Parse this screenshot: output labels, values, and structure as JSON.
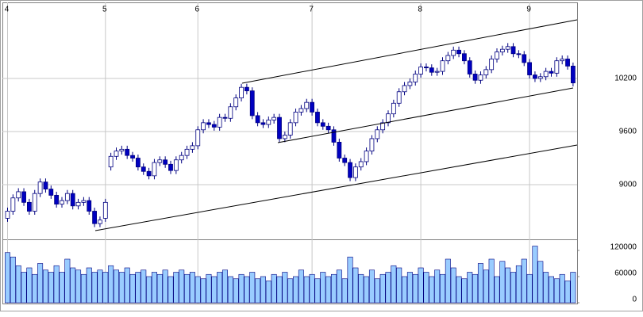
{
  "chart_data": [
    {
      "type": "candlestick",
      "categories": [
        "4",
        null,
        null,
        null,
        null,
        null,
        null,
        null,
        null,
        null,
        null,
        null,
        null,
        null,
        null,
        null,
        null,
        null,
        "5",
        null,
        null,
        null,
        null,
        null,
        null,
        null,
        null,
        null,
        null,
        null,
        null,
        null,
        null,
        null,
        null,
        "6",
        null,
        null,
        null,
        null,
        null,
        null,
        null,
        null,
        null,
        null,
        null,
        null,
        null,
        null,
        null,
        null,
        null,
        null,
        null,
        null,
        "7",
        null,
        null,
        null,
        null,
        null,
        null,
        null,
        null,
        null,
        null,
        null,
        null,
        null,
        null,
        null,
        null,
        null,
        null,
        null,
        "8",
        null,
        null,
        null,
        null,
        null,
        null,
        null,
        null,
        null,
        null,
        null,
        null,
        null,
        null,
        null,
        null,
        null,
        null,
        null,
        "9",
        null,
        null,
        null,
        null,
        null,
        null,
        null,
        null
      ],
      "open": [
        8620,
        8700,
        8850,
        8920,
        8800,
        8700,
        8900,
        9030,
        8950,
        8880,
        8780,
        8820,
        8900,
        8760,
        8800,
        8820,
        8700,
        8560,
        8620,
        9200,
        9320,
        9380,
        9400,
        9330,
        9300,
        9200,
        9150,
        9100,
        9250,
        9280,
        9230,
        9160,
        9280,
        9330,
        9400,
        9440,
        9620,
        9700,
        9680,
        9650,
        9760,
        9750,
        9880,
        9980,
        10100,
        10060,
        9780,
        9700,
        9680,
        9730,
        9760,
        9520,
        9560,
        9700,
        9820,
        9860,
        9930,
        9820,
        9700,
        9660,
        9620,
        9480,
        9300,
        9250,
        9080,
        9200,
        9260,
        9380,
        9520,
        9620,
        9700,
        9800,
        9920,
        10050,
        10120,
        10160,
        10250,
        10330,
        10320,
        10270,
        10280,
        10400,
        10460,
        10520,
        10480,
        10400,
        10250,
        10180,
        10240,
        10300,
        10420,
        10500,
        10530,
        10560,
        10480,
        10470,
        10380,
        10240,
        10200,
        10220,
        10280,
        10260,
        10400,
        10420,
        10340
      ],
      "high": [
        8740,
        8890,
        8960,
        8960,
        8840,
        8940,
        9070,
        9070,
        8990,
        8920,
        8860,
        8940,
        8940,
        8840,
        8860,
        8860,
        8740,
        8640,
        8840,
        9360,
        9420,
        9440,
        9440,
        9370,
        9340,
        9240,
        9190,
        9290,
        9320,
        9320,
        9270,
        9320,
        9370,
        9440,
        9480,
        9660,
        9740,
        9740,
        9720,
        9800,
        9800,
        9920,
        10020,
        10140,
        10140,
        10100,
        9820,
        9740,
        9770,
        9800,
        9800,
        9600,
        9740,
        9860,
        9900,
        9970,
        9970,
        9860,
        9740,
        9700,
        9660,
        9520,
        9340,
        9290,
        9240,
        9300,
        9420,
        9560,
        9660,
        9740,
        9840,
        9960,
        10090,
        10160,
        10200,
        10290,
        10370,
        10370,
        10360,
        10320,
        10440,
        10500,
        10560,
        10560,
        10520,
        10440,
        10290,
        10280,
        10340,
        10460,
        10540,
        10570,
        10600,
        10600,
        10520,
        10510,
        10420,
        10280,
        10260,
        10320,
        10320,
        10440,
        10460,
        10460,
        10380
      ],
      "low": [
        8580,
        8660,
        8810,
        8760,
        8660,
        8660,
        8860,
        8910,
        8840,
        8740,
        8740,
        8780,
        8720,
        8720,
        8760,
        8660,
        8520,
        8520,
        8580,
        9160,
        9280,
        9340,
        9290,
        9260,
        9160,
        9110,
        9060,
        9060,
        9210,
        9190,
        9120,
        9120,
        9240,
        9290,
        9360,
        9400,
        9580,
        9640,
        9610,
        9610,
        9710,
        9710,
        9840,
        9940,
        10020,
        9740,
        9660,
        9640,
        9640,
        9690,
        9480,
        9480,
        9520,
        9660,
        9780,
        9820,
        9780,
        9660,
        9620,
        9580,
        9440,
        9260,
        9210,
        9040,
        9040,
        9160,
        9220,
        9340,
        9480,
        9580,
        9660,
        9760,
        9880,
        10010,
        10080,
        10120,
        10210,
        10280,
        10230,
        10230,
        10240,
        10360,
        10420,
        10440,
        10360,
        10210,
        10140,
        10140,
        10200,
        10260,
        10380,
        10460,
        10490,
        10440,
        10430,
        10340,
        10200,
        10160,
        10160,
        10180,
        10220,
        10220,
        10360,
        10300,
        10110
      ],
      "close": [
        8700,
        8850,
        8920,
        8800,
        8700,
        8900,
        9030,
        8950,
        8880,
        8780,
        8820,
        8900,
        8760,
        8800,
        8820,
        8700,
        8560,
        8600,
        8800,
        9320,
        9380,
        9400,
        9330,
        9300,
        9200,
        9150,
        9100,
        9250,
        9280,
        9230,
        9160,
        9280,
        9330,
        9400,
        9440,
        9620,
        9700,
        9680,
        9650,
        9760,
        9750,
        9880,
        9980,
        10100,
        10060,
        9780,
        9700,
        9680,
        9730,
        9760,
        9520,
        9560,
        9700,
        9820,
        9860,
        9930,
        9820,
        9700,
        9660,
        9620,
        9480,
        9300,
        9250,
        9080,
        9200,
        9260,
        9380,
        9520,
        9620,
        9700,
        9800,
        9920,
        10050,
        10120,
        10160,
        10250,
        10330,
        10320,
        10270,
        10280,
        10400,
        10460,
        10520,
        10480,
        10400,
        10250,
        10180,
        10240,
        10300,
        10420,
        10500,
        10530,
        10560,
        10480,
        10470,
        10380,
        10240,
        10200,
        10220,
        10280,
        10260,
        10400,
        10420,
        10340,
        10150
      ],
      "up_color": "#ffffff",
      "down_color": "#0000c0",
      "edge_color": "#000080",
      "ylim": [
        8400,
        11060
      ],
      "yticks": [
        9000,
        9600,
        10200
      ],
      "grid": true
    },
    {
      "type": "bar",
      "values": [
        115000,
        105000,
        85000,
        70000,
        80000,
        65000,
        90000,
        75000,
        70000,
        85000,
        70000,
        100000,
        80000,
        75000,
        65000,
        80000,
        70000,
        75000,
        70000,
        85000,
        75000,
        70000,
        80000,
        65000,
        70000,
        75000,
        60000,
        70000,
        65000,
        75000,
        60000,
        70000,
        75000,
        65000,
        70000,
        60000,
        55000,
        65000,
        60000,
        70000,
        75000,
        60000,
        55000,
        65000,
        60000,
        70000,
        55000,
        60000,
        50000,
        65000,
        60000,
        70000,
        55000,
        60000,
        75000,
        60000,
        65000,
        55000,
        70000,
        60000,
        65000,
        75000,
        55000,
        105000,
        80000,
        65000,
        60000,
        75000,
        55000,
        65000,
        70000,
        85000,
        80000,
        60000,
        70000,
        65000,
        80000,
        70000,
        60000,
        75000,
        65000,
        100000,
        80000,
        60000,
        55000,
        70000,
        65000,
        90000,
        75000,
        100000,
        60000,
        95000,
        80000,
        70000,
        85000,
        100000,
        65000,
        130000,
        95000,
        70000,
        60000,
        55000,
        65000,
        50000,
        70000
      ],
      "color": "#99ccff",
      "ylim": [
        0,
        140000
      ],
      "yticks": [
        0,
        60000,
        120000
      ]
    }
  ]
}
